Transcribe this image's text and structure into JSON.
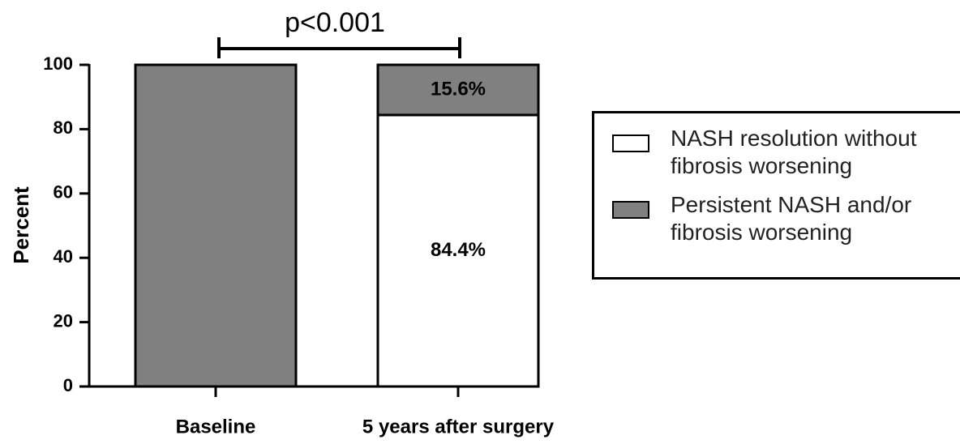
{
  "chart_data": {
    "type": "stacked_bar",
    "annotation": "p<0.001",
    "ylabel": "Percent",
    "categories": [
      "Baseline",
      "5 years after surgery"
    ],
    "series": [
      {
        "name": "NASH resolution without fibrosis worsening",
        "color": "#ffffff",
        "values": [
          0,
          84.4
        ],
        "value_labels": [
          null,
          "84.4%"
        ]
      },
      {
        "name": "Persistent NASH and/or fibrosis worsening",
        "color": "#808080",
        "values": [
          100,
          15.6
        ],
        "value_labels": [
          null,
          "15.6%"
        ]
      }
    ],
    "ylim": [
      0,
      100
    ],
    "yticks": [
      0,
      20,
      40,
      60,
      80,
      100
    ]
  }
}
